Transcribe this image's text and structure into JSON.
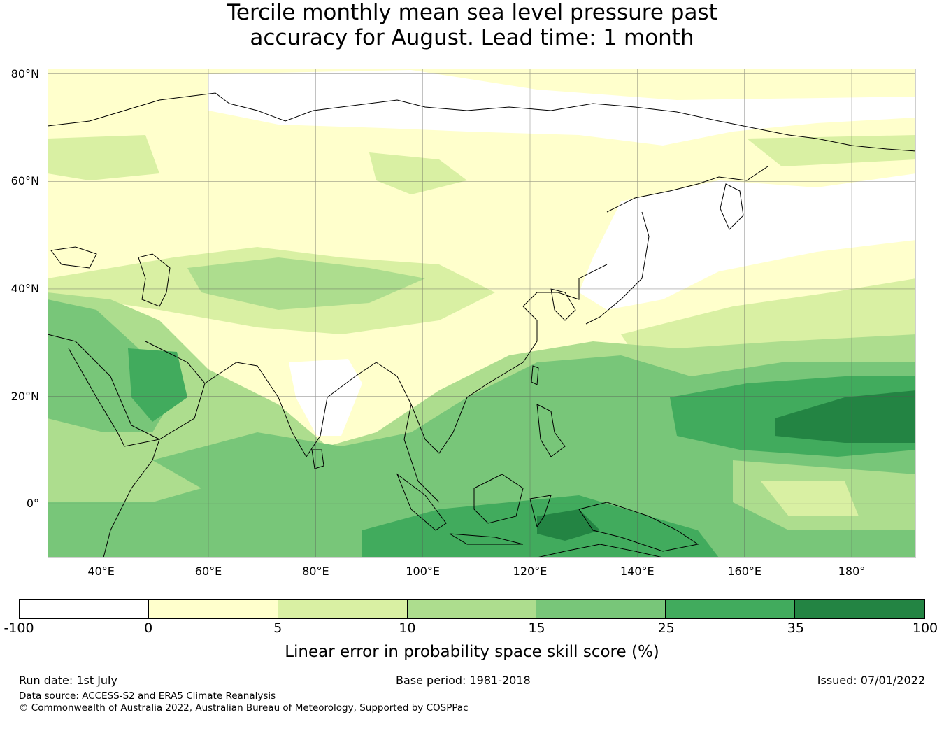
{
  "title": {
    "line1": "Tercile monthly mean sea level pressure past",
    "line2": "accuracy for August. Lead time: 1 month"
  },
  "map": {
    "lon_range": [
      30,
      192
    ],
    "lat_range": [
      -10,
      81
    ],
    "lat_labels": [
      "80°N",
      "60°N",
      "40°N",
      "20°N",
      "0°"
    ],
    "lat_values": [
      80,
      60,
      40,
      20,
      0
    ],
    "lon_labels": [
      "40°E",
      "60°E",
      "80°E",
      "100°E",
      "120°E",
      "140°E",
      "160°E",
      "180°"
    ],
    "lon_values": [
      40,
      60,
      80,
      100,
      120,
      140,
      160,
      180
    ],
    "gridlines": true
  },
  "colorbar": {
    "bounds": [
      "-100",
      "0",
      "5",
      "10",
      "15",
      "25",
      "35",
      "100"
    ],
    "colors": [
      "#ffffff",
      "#ffffcc",
      "#d9f0a3",
      "#addd8e",
      "#78c679",
      "#41ab5d",
      "#238443"
    ],
    "label": "Linear error in probability space skill score (%)"
  },
  "footer": {
    "run_date": "Run date: 1st July",
    "base_period": "Base period: 1981-2018",
    "issued": "Issued: 07/01/2022",
    "data_source": "Data source: ACCESS-S2 and ERA5 Climate Reanalysis",
    "copyright": "© Commonwealth of Australia 2022, Australian Bureau of Meteorology, Supported by COSPPac"
  }
}
